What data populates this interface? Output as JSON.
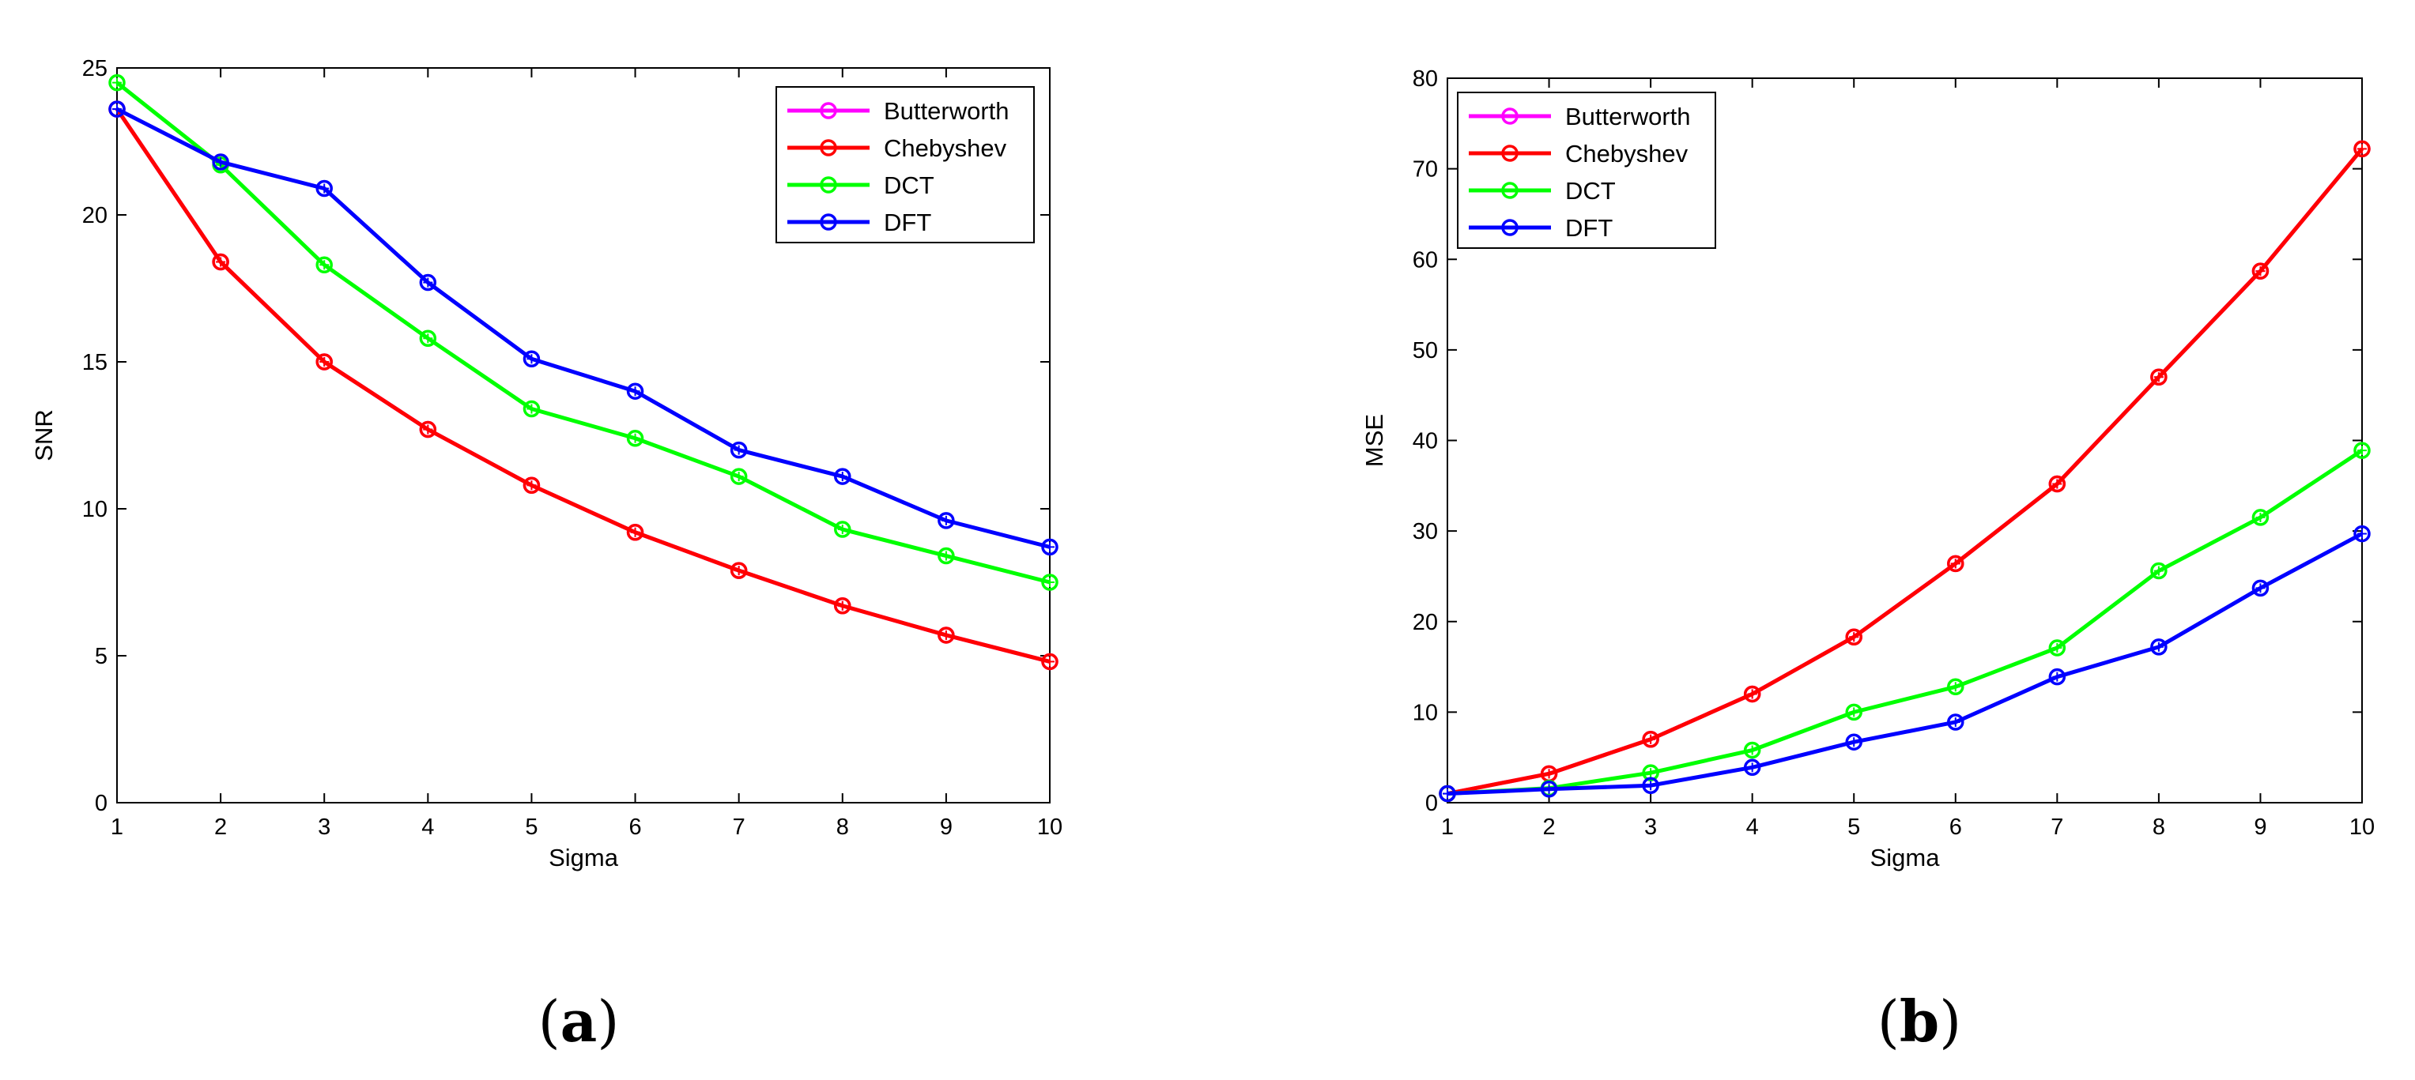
{
  "chart_data": [
    {
      "type": "line",
      "caption": "(a)",
      "caption_letter": "a",
      "xlabel": "Sigma",
      "ylabel": "SNR",
      "title": "",
      "xlim": [
        1,
        10
      ],
      "ylim": [
        0,
        25
      ],
      "xticks": [
        1,
        2,
        3,
        4,
        5,
        6,
        7,
        8,
        9,
        10
      ],
      "yticks": [
        0,
        5,
        10,
        15,
        20,
        25
      ],
      "grid": false,
      "legend_position": "top-right",
      "x": [
        1,
        2,
        3,
        4,
        5,
        6,
        7,
        8,
        9,
        10
      ],
      "series": [
        {
          "name": "Butterworth",
          "color": "#ff00ff",
          "values": [
            23.6,
            18.4,
            15.0,
            12.7,
            10.8,
            9.2,
            7.9,
            6.7,
            5.7,
            4.8
          ]
        },
        {
          "name": "Chebyshev",
          "color": "#ff0000",
          "values": [
            23.6,
            18.4,
            15.0,
            12.7,
            10.8,
            9.2,
            7.9,
            6.7,
            5.7,
            4.8
          ]
        },
        {
          "name": "DCT",
          "color": "#00ff00",
          "values": [
            24.5,
            21.7,
            18.3,
            15.8,
            13.4,
            12.4,
            11.1,
            9.3,
            8.4,
            7.5
          ]
        },
        {
          "name": "DFT",
          "color": "#0000ff",
          "values": [
            23.6,
            21.8,
            20.9,
            17.7,
            15.1,
            14.0,
            12.0,
            11.1,
            9.6,
            8.7
          ]
        }
      ]
    },
    {
      "type": "line",
      "caption": "(b)",
      "caption_letter": "b",
      "xlabel": "Sigma",
      "ylabel": "MSE",
      "title": "",
      "xlim": [
        1,
        10
      ],
      "ylim": [
        0,
        80
      ],
      "xticks": [
        1,
        2,
        3,
        4,
        5,
        6,
        7,
        8,
        9,
        10
      ],
      "yticks": [
        0,
        10,
        20,
        30,
        40,
        50,
        60,
        70,
        80
      ],
      "grid": false,
      "legend_position": "top-left",
      "x": [
        1,
        2,
        3,
        4,
        5,
        6,
        7,
        8,
        9,
        10
      ],
      "series": [
        {
          "name": "Butterworth",
          "color": "#ff00ff",
          "values": [
            1.0,
            3.2,
            7.0,
            12.0,
            18.3,
            26.4,
            35.2,
            47.0,
            58.7,
            72.2
          ]
        },
        {
          "name": "Chebyshev",
          "color": "#ff0000",
          "values": [
            1.0,
            3.2,
            7.0,
            12.0,
            18.3,
            26.4,
            35.2,
            47.0,
            58.7,
            72.2
          ]
        },
        {
          "name": "DCT",
          "color": "#00ff00",
          "values": [
            1.0,
            1.6,
            3.3,
            5.8,
            10.0,
            12.8,
            17.1,
            25.6,
            31.5,
            38.9
          ]
        },
        {
          "name": "DFT",
          "color": "#0000ff",
          "values": [
            1.0,
            1.5,
            1.9,
            3.9,
            6.7,
            8.9,
            13.9,
            17.2,
            23.7,
            29.7
          ]
        }
      ]
    }
  ]
}
